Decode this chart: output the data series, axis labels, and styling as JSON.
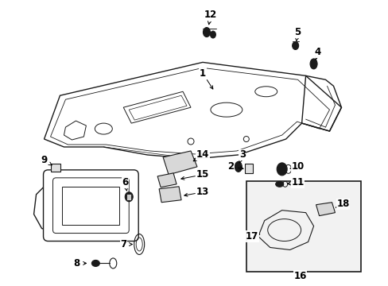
{
  "background_color": "#ffffff",
  "line_color": "#1a1a1a",
  "figsize": [
    4.89,
    3.6
  ],
  "dpi": 100,
  "label_fontsize": 8.5,
  "arrow_lw": 0.7,
  "part_lw": 0.8
}
